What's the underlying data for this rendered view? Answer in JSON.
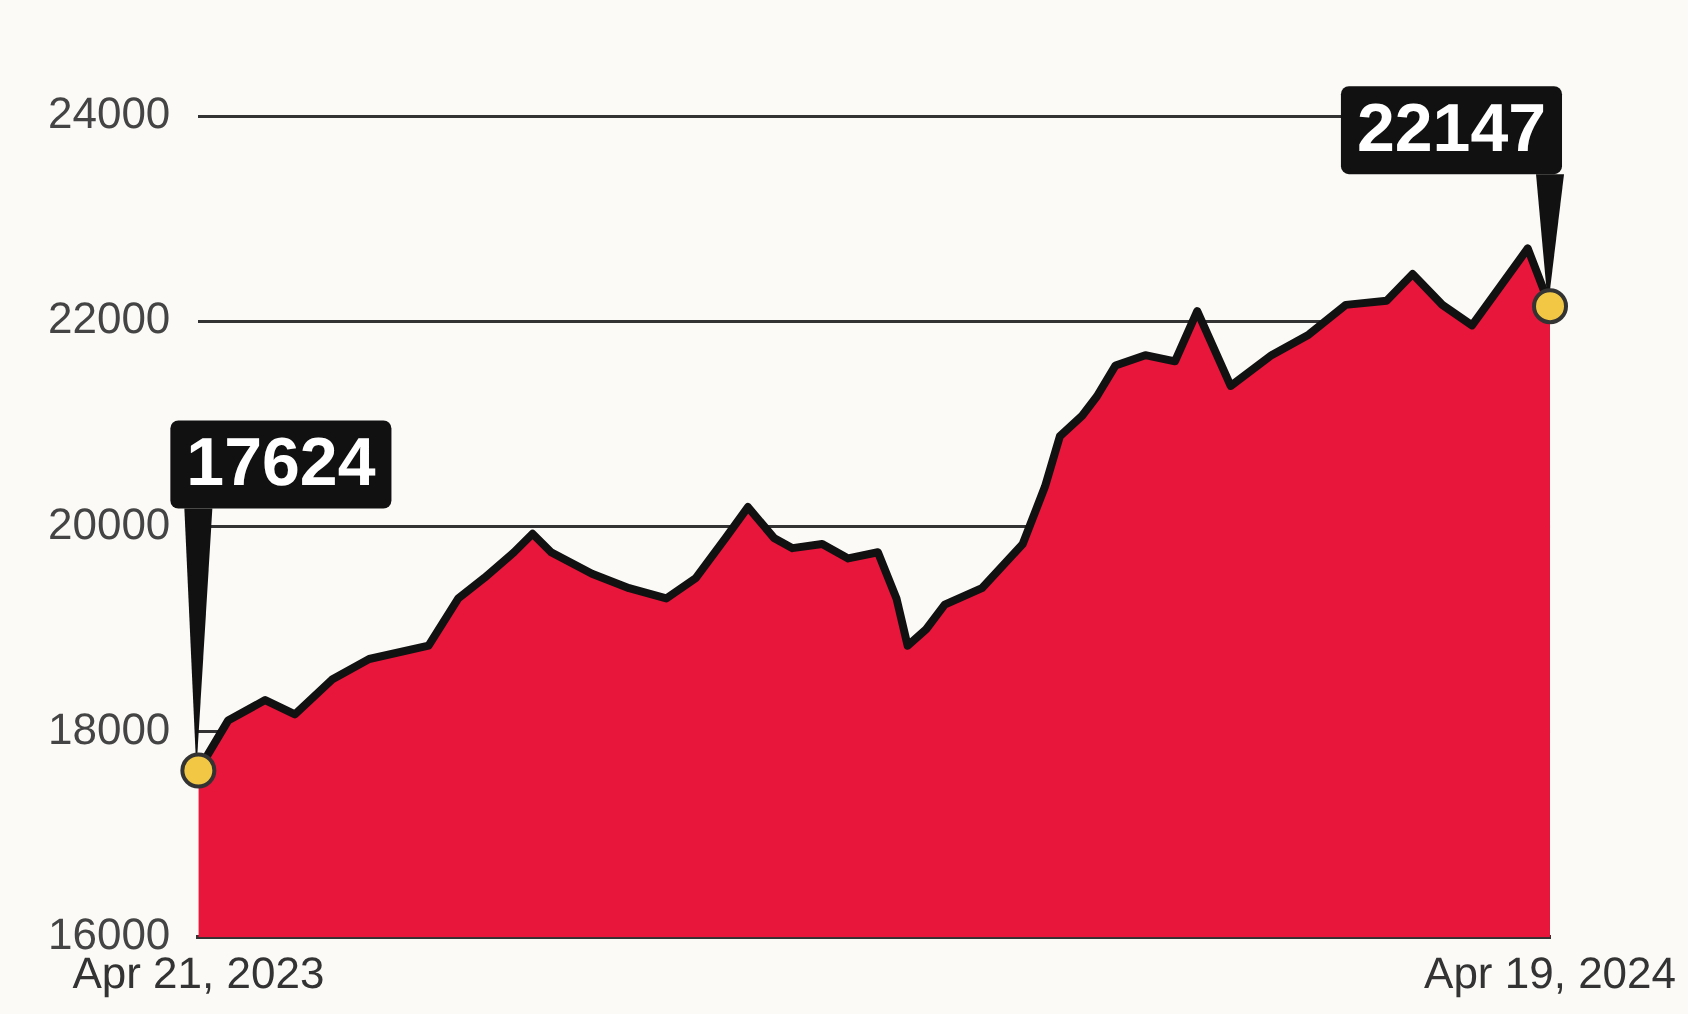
{
  "chart_data": {
    "type": "area",
    "x": [
      "2023-04-21",
      "2023-04-29",
      "2023-05-09",
      "2023-05-17",
      "2023-05-27",
      "2023-06-06",
      "2023-06-22",
      "2023-06-30",
      "2023-07-07",
      "2023-07-15",
      "2023-07-20",
      "2023-07-25",
      "2023-08-05",
      "2023-08-15",
      "2023-08-25",
      "2023-09-02",
      "2023-09-10",
      "2023-09-16",
      "2023-09-23",
      "2023-09-28",
      "2023-10-06",
      "2023-10-13",
      "2023-10-21",
      "2023-10-26",
      "2023-10-29",
      "2023-11-03",
      "2023-11-08",
      "2023-11-18",
      "2023-11-29",
      "2023-12-05",
      "2023-12-09",
      "2023-12-15",
      "2023-12-19",
      "2023-12-24",
      "2024-01-01",
      "2024-01-09",
      "2024-01-15",
      "2024-01-24",
      "2024-02-04",
      "2024-02-14",
      "2024-02-24",
      "2024-03-06",
      "2024-03-13",
      "2024-03-21",
      "2024-03-29",
      "2024-04-06",
      "2024-04-13",
      "2024-04-19"
    ],
    "series": [
      {
        "color": "#e8163a",
        "values": [
          17624,
          18110,
          18310,
          18170,
          18510,
          18710,
          18840,
          19300,
          19500,
          19750,
          19930,
          19750,
          19540,
          19400,
          19300,
          19500,
          19890,
          20190,
          19890,
          19790,
          19830,
          19690,
          19750,
          19300,
          18840,
          19000,
          19240,
          19400,
          19830,
          20390,
          20880,
          21080,
          21270,
          21570,
          21670,
          21610,
          22100,
          21370,
          21670,
          21870,
          22160,
          22200,
          22460,
          22160,
          21960,
          22360,
          22710,
          22147
        ]
      }
    ],
    "xlim": [
      "2023-04-21",
      "2024-04-19"
    ],
    "xticks": [
      {
        "value": "2023-04-21",
        "label": "Apr 21, 2023"
      },
      {
        "value": "2024-04-19",
        "label": "Apr 19, 2024"
      }
    ],
    "ylim": [
      16000,
      24000
    ],
    "yticks": [
      16000,
      18000,
      20000,
      22000,
      24000
    ],
    "grid": "y",
    "marker": "none",
    "line_style": "solid",
    "legend": false,
    "annotations": [
      {
        "text": "17624",
        "x": "2023-04-21",
        "y": 17624
      },
      {
        "text": "22147",
        "x": "2024-04-19",
        "y": 22147
      }
    ]
  }
}
